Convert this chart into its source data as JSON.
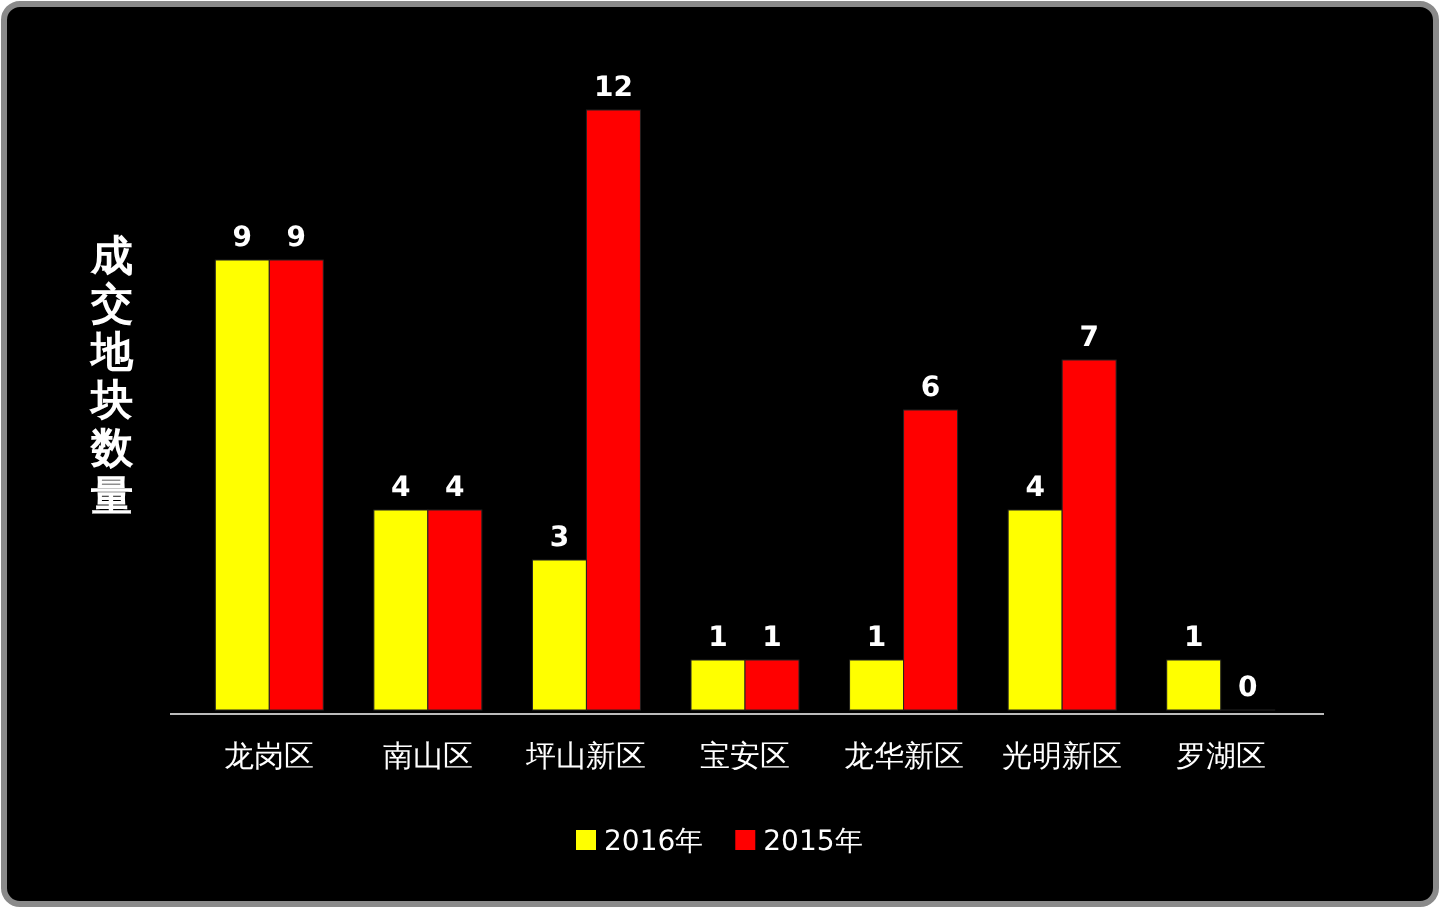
{
  "chart_data": {
    "type": "bar",
    "ylabel": "成交地块数量",
    "categories": [
      "龙岗区",
      "南山区",
      "坪山新区",
      "宝安区",
      "龙华新区",
      "光明新区",
      "罗湖区"
    ],
    "series": [
      {
        "name": "2016年",
        "color": "#ffff00",
        "values": [
          9,
          4,
          3,
          1,
          1,
          4,
          1
        ]
      },
      {
        "name": "2015年",
        "color": "#ff0000",
        "values": [
          9,
          4,
          12,
          1,
          6,
          7,
          0
        ]
      }
    ],
    "data_labels": true,
    "legend": "bottom"
  }
}
